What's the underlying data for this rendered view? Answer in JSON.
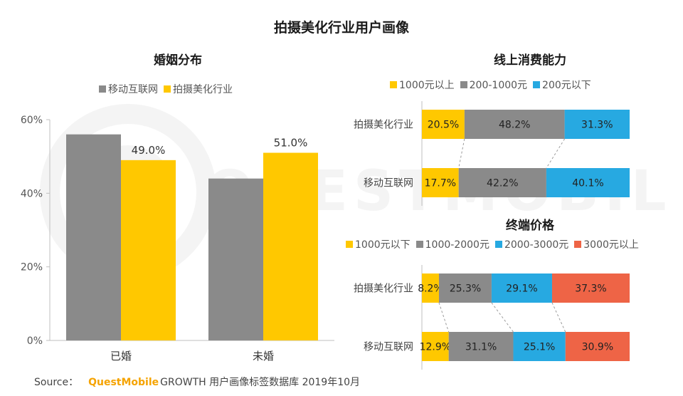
{
  "title": "拍摄美化行业用户画像",
  "watermark_text": "QUESTMOBILE",
  "colors": {
    "gray": "#8a8a8a",
    "yellow": "#ffc800",
    "blue": "#27a9e1",
    "red": "#ee6446",
    "brand": "#f5a300"
  },
  "source": {
    "prefix": "Source：",
    "brand": "QuestMobile",
    "rest": "GROWTH 用户画像标签数据库   2019年10月"
  },
  "chart_data": [
    {
      "type": "bar",
      "title": "婚姻分布",
      "categories": [
        "已婚",
        "未婚"
      ],
      "series": [
        {
          "name": "移动互联网",
          "color": "#8a8a8a",
          "values": [
            56,
            44
          ],
          "labels": [
            "",
            ""
          ]
        },
        {
          "name": "拍摄美化行业",
          "color": "#ffc800",
          "values": [
            49.0,
            51.0
          ],
          "labels": [
            "49.0%",
            "51.0%"
          ]
        }
      ],
      "ylim": [
        0,
        60
      ],
      "yticks": [
        "0%",
        "20%",
        "40%",
        "60%"
      ],
      "grid": false,
      "legend": "top"
    },
    {
      "type": "bar",
      "orientation": "horizontal-stacked-100",
      "title": "线上消费能力",
      "categories": [
        "拍摄美化行业",
        "移动互联网"
      ],
      "series": [
        {
          "name": "1000元以上",
          "color": "#ffc800",
          "values": [
            20.5,
            17.7
          ],
          "labels": [
            "20.5%",
            "17.7%"
          ]
        },
        {
          "name": "200-1000元",
          "color": "#8a8a8a",
          "values": [
            48.2,
            42.2
          ],
          "labels": [
            "48.2%",
            "42.2%"
          ]
        },
        {
          "name": "200元以下",
          "color": "#27a9e1",
          "values": [
            31.3,
            40.1
          ],
          "labels": [
            "31.3%",
            "40.1%"
          ]
        }
      ],
      "legend": "top"
    },
    {
      "type": "bar",
      "orientation": "horizontal-stacked-100",
      "title": "终端价格",
      "categories": [
        "拍摄美化行业",
        "移动互联网"
      ],
      "series": [
        {
          "name": "1000元以下",
          "color": "#ffc800",
          "values": [
            8.2,
            12.9
          ],
          "labels": [
            "8.2%",
            "12.9%"
          ]
        },
        {
          "name": "1000-2000元",
          "color": "#8a8a8a",
          "values": [
            25.3,
            31.1
          ],
          "labels": [
            "25.3%",
            "31.1%"
          ]
        },
        {
          "name": "2000-3000元",
          "color": "#27a9e1",
          "values": [
            29.1,
            25.1
          ],
          "labels": [
            "29.1%",
            "25.1%"
          ]
        },
        {
          "name": "3000元以上",
          "color": "#ee6446",
          "values": [
            37.3,
            30.9
          ],
          "labels": [
            "37.3%",
            "30.9%"
          ]
        }
      ],
      "legend": "top"
    }
  ]
}
